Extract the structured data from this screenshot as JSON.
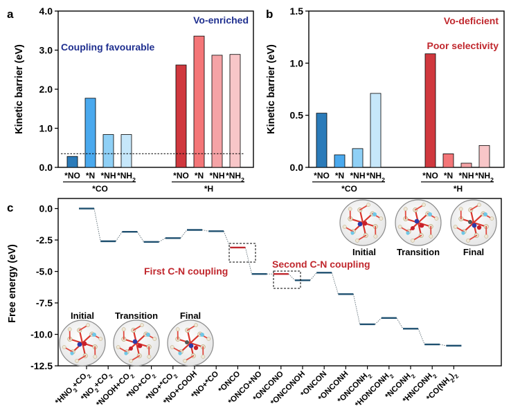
{
  "colors": {
    "co_series": [
      "#2b7bb9",
      "#4aa9ee",
      "#8fd0f6",
      "#c6e7fa"
    ],
    "h_series": [
      "#d0383e",
      "#f47678",
      "#f5a3a6",
      "#f8c6c8"
    ],
    "blue_text": "#1f2f8f",
    "red_text": "#c0272d",
    "level_blue": "#1e4f6f",
    "level_red": "#c0272d"
  },
  "chart_data": [
    {
      "panel": "a",
      "type": "bar",
      "ylabel": "Kinetic barrier (eV)",
      "ylim": [
        0,
        4.0
      ],
      "yticks": [
        "0.0",
        "1.0",
        "2.0",
        "3.0",
        "4.0"
      ],
      "yticks_values": [
        0,
        1,
        2,
        3,
        4
      ],
      "reference_line": 0.35,
      "annotations": [
        "Vo-enriched",
        "Coupling favourable"
      ],
      "groups": [
        {
          "name": "*CO",
          "categories": [
            "*NO",
            "*N",
            "*NH",
            "*NH₂"
          ],
          "values": [
            0.28,
            1.77,
            0.84,
            0.84
          ]
        },
        {
          "name": "*H",
          "categories": [
            "*NO",
            "*N",
            "*NH",
            "*NH₂"
          ],
          "values": [
            2.62,
            3.36,
            2.87,
            2.89
          ]
        }
      ]
    },
    {
      "panel": "b",
      "type": "bar",
      "ylabel": "Kinetic barrier (eV)",
      "ylim": [
        0,
        1.5
      ],
      "yticks": [
        "0.0",
        "0.5",
        "1.0",
        "1.5"
      ],
      "yticks_values": [
        0,
        0.5,
        1.0,
        1.5
      ],
      "annotations": [
        "Vo-deficient",
        "Poor selectivity"
      ],
      "groups": [
        {
          "name": "*CO",
          "categories": [
            "*NO",
            "*N",
            "*NH",
            "*NH₂"
          ],
          "values": [
            0.52,
            0.12,
            0.18,
            0.71
          ]
        },
        {
          "name": "*H",
          "categories": [
            "*NO",
            "*N",
            "*NH",
            "*NH₂"
          ],
          "values": [
            1.09,
            0.13,
            0.04,
            0.21
          ]
        }
      ]
    },
    {
      "panel": "c",
      "type": "line",
      "subtype": "energy-profile",
      "ylabel": "Free energy (eV)",
      "ylim": [
        -12.5,
        0.8
      ],
      "yticks": [
        "0.0",
        "-2.5",
        "-5.0",
        "-7.5",
        "-10.0",
        "-12.5"
      ],
      "yticks_values": [
        0,
        -2.5,
        -5,
        -7.5,
        -10,
        -12.5
      ],
      "steps": [
        {
          "label": "*HNO₃+CO₂",
          "value": 0.0
        },
        {
          "label": "*NO₂+CO₂",
          "value": -2.6
        },
        {
          "label": "*NOOH+CO₂",
          "value": -1.85
        },
        {
          "label": "*NO+CO₂",
          "value": -2.65
        },
        {
          "label": "*NO+*CO₂",
          "value": -2.35
        },
        {
          "label": "*NO+COOH",
          "value": -1.7
        },
        {
          "label": "*NO+*CO",
          "value": -1.8
        },
        {
          "label": "*ONCO",
          "value": -3.1,
          "highlight": true
        },
        {
          "label": "*ONCO+NO",
          "value": -5.2
        },
        {
          "label": "*ONCONO",
          "value": -5.2,
          "highlight": true
        },
        {
          "label": "*ONCONOH",
          "value": -5.7
        },
        {
          "label": "*ONCON",
          "value": -5.1
        },
        {
          "label": "*ONCONH",
          "value": -6.8
        },
        {
          "label": "*ONCONH₂",
          "value": -9.2
        },
        {
          "label": "*HONCONH₂",
          "value": -8.7
        },
        {
          "label": "*NCONH₂",
          "value": -9.55
        },
        {
          "label": "*HNCONH₂",
          "value": -10.8
        },
        {
          "label": "*CO(NH₂)₂",
          "value": -10.9
        }
      ],
      "annotations": [
        "First C-N coupling",
        "Second C-N coupling"
      ],
      "inset_labels_left": [
        "Initial",
        "Transition",
        "Final"
      ],
      "inset_labels_right": [
        "Initial",
        "Transition",
        "Final"
      ]
    }
  ],
  "panel_labels": [
    "a",
    "b",
    "c"
  ]
}
